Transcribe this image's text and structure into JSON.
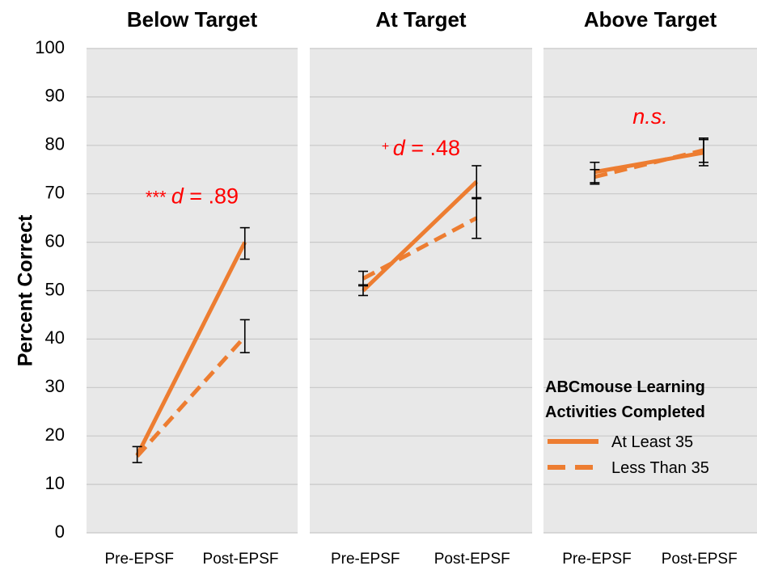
{
  "chart_data": {
    "type": "line",
    "ylabel": "Percent Correct",
    "ylim": [
      0,
      100
    ],
    "yticks": [
      "0",
      "10",
      "20",
      "30",
      "40",
      "50",
      "60",
      "70",
      "80",
      "90",
      "100"
    ],
    "categories": [
      "Pre-EPSF",
      "Post-EPSF"
    ],
    "grid": true,
    "line_color": "#ED7D31",
    "annotation_color": "#FF0000",
    "panel_background": "#E8E8E8",
    "legend": {
      "title_line1": "ABCmouse Learning",
      "title_line2": "Activities Completed",
      "placement": "bottom-right",
      "entries": [
        {
          "label": "At Least 35",
          "style": "solid"
        },
        {
          "label": "Less Than 35",
          "style": "dashed"
        }
      ]
    },
    "panels": [
      {
        "title": "Below Target",
        "annotation": {
          "prefix": "*** ",
          "stat": "d",
          "value": " = .89",
          "x_at": 0.5,
          "y_at": 68
        },
        "series": [
          {
            "name": "At Least 35",
            "style": "solid",
            "values": [
              16,
              60
            ],
            "errors": [
              [
                14.5,
                17.8
              ],
              [
                56.5,
                63
              ]
            ]
          },
          {
            "name": "Less Than 35",
            "style": "dashed",
            "values": [
              15.8,
              40.5
            ],
            "errors": [
              null,
              [
                37.2,
                44
              ]
            ]
          }
        ]
      },
      {
        "title": "At Target",
        "annotation": {
          "prefix": "+ ",
          "stat": "d",
          "value": " = .48",
          "x_at": 0.5,
          "y_at": 78
        },
        "series": [
          {
            "name": "At Least 35",
            "style": "solid",
            "values": [
              50,
              72.5
            ],
            "errors": [
              [
                49,
                51.2
              ],
              [
                69.2,
                75.8
              ]
            ]
          },
          {
            "name": "Less Than 35",
            "style": "dashed",
            "values": [
              52.5,
              65
            ],
            "errors": [
              [
                51,
                54
              ],
              [
                60.8,
                69
              ]
            ]
          }
        ]
      },
      {
        "title": "Above Target",
        "annotation": {
          "prefix": "",
          "stat": "n.s.",
          "value": "",
          "x_at": 0.5,
          "y_at": 84.5
        },
        "series": [
          {
            "name": "At Least 35",
            "style": "solid",
            "values": [
              74.5,
              78.5
            ],
            "errors": [
              [
                72,
                76.5
              ],
              [
                75.8,
                81.5
              ]
            ]
          },
          {
            "name": "Less Than 35",
            "style": "dashed",
            "values": [
              73.5,
              79
            ],
            "errors": [
              [
                72.3,
                75
              ],
              [
                76.5,
                81.2
              ]
            ]
          }
        ]
      }
    ]
  }
}
